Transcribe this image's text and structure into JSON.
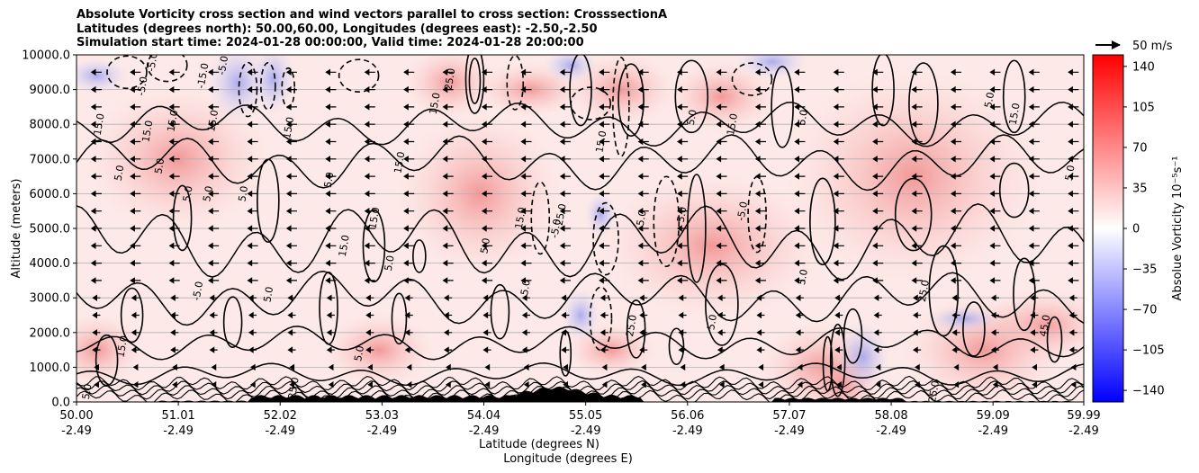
{
  "chart_data": {
    "type": "contour",
    "title_lines": [
      "Absolute Vorticity cross section and wind vectors parallel to cross section: CrosssectionA",
      "Latitudes (degrees north): 50.00,60.00, Longitudes (degrees east): -2.50,-2.50",
      "Simulation start time: 2024-01-28 00:00:00, Valid time: 2024-01-28 20:00:00"
    ],
    "ylabel": "Altitude (meters)",
    "xlabel_lines": [
      "Latitude (degrees N)",
      "Longitude (degrees E)"
    ],
    "ylim": [
      0,
      10000
    ],
    "y_ticks": [
      "0.0",
      "1000.0",
      "2000.0",
      "3000.0",
      "4000.0",
      "5000.0",
      "6000.0",
      "7000.0",
      "8000.0",
      "9000.0",
      "10000.0"
    ],
    "x_ticks": [
      {
        "lat": "50.00",
        "lon": "-2.49"
      },
      {
        "lat": "51.01",
        "lon": "-2.49"
      },
      {
        "lat": "52.02",
        "lon": "-2.49"
      },
      {
        "lat": "53.03",
        "lon": "-2.49"
      },
      {
        "lat": "54.04",
        "lon": "-2.49"
      },
      {
        "lat": "55.05",
        "lon": "-2.49"
      },
      {
        "lat": "56.06",
        "lon": "-2.49"
      },
      {
        "lat": "57.07",
        "lon": "-2.49"
      },
      {
        "lat": "58.08",
        "lon": "-2.49"
      },
      {
        "lat": "59.09",
        "lon": "-2.49"
      },
      {
        "lat": "59.99",
        "lon": "-2.49"
      }
    ],
    "grid": "horizontal",
    "colorbar": {
      "label": "Absolue Vorticity 10⁻⁵s⁻¹",
      "range": [
        -150,
        150
      ],
      "colormap": "bwr",
      "ticks": [
        "140",
        "105",
        "70",
        "35",
        "0",
        "−35",
        "−70",
        "−105",
        "−140"
      ],
      "tick_values": [
        140,
        105,
        70,
        35,
        0,
        -35,
        -70,
        -105,
        -140
      ]
    },
    "quiver_key": {
      "label": "50 m/s",
      "value": 50
    },
    "contour_labels": [
      {
        "t": "15.0",
        "lat": 50.22,
        "alt": 8000
      },
      {
        "t": "5.0",
        "lat": 50.42,
        "alt": 6600
      },
      {
        "t": "15.0",
        "lat": 50.7,
        "alt": 7800
      },
      {
        "t": "5.0",
        "lat": 50.82,
        "alt": 6800
      },
      {
        "t": "-5.0",
        "lat": 50.65,
        "alt": 9100
      },
      {
        "t": "-5.0",
        "lat": 50.75,
        "alt": 9800
      },
      {
        "t": "15.0",
        "lat": 50.95,
        "alt": 8100
      },
      {
        "t": "-15.0",
        "lat": 51.25,
        "alt": 9400
      },
      {
        "t": "-5.0",
        "lat": 51.45,
        "alt": 9700
      },
      {
        "t": "15.0",
        "lat": 51.35,
        "alt": 8100
      },
      {
        "t": "5.0",
        "lat": 51.1,
        "alt": 6000
      },
      {
        "t": "5.0",
        "lat": 51.3,
        "alt": 6000
      },
      {
        "t": "5.0",
        "lat": 51.65,
        "alt": 6000
      },
      {
        "t": "15.0",
        "lat": 52.1,
        "alt": 7900
      },
      {
        "t": "5.0",
        "lat": 52.5,
        "alt": 6400
      },
      {
        "t": "15.0",
        "lat": 52.95,
        "alt": 5300
      },
      {
        "t": "15.0",
        "lat": 52.65,
        "alt": 4500
      },
      {
        "t": "5.0",
        "lat": 53.1,
        "alt": 4000
      },
      {
        "t": "15.0",
        "lat": 53.2,
        "alt": 6900
      },
      {
        "t": "25.0",
        "lat": 53.7,
        "alt": 9300
      },
      {
        "t": "15.0",
        "lat": 53.55,
        "alt": 8600
      },
      {
        "t": "5.0",
        "lat": 54.05,
        "alt": 4500
      },
      {
        "t": "15.0",
        "lat": 54.4,
        "alt": 5300
      },
      {
        "t": "25.0",
        "lat": 54.8,
        "alt": 5400
      },
      {
        "t": "-5.0",
        "lat": 54.75,
        "alt": 5000
      },
      {
        "t": "5.0",
        "lat": 54.45,
        "alt": 3300
      },
      {
        "t": "15.0",
        "lat": 55.2,
        "alt": 7500
      },
      {
        "t": "5.0",
        "lat": 55.6,
        "alt": 5300
      },
      {
        "t": "5.0",
        "lat": 56.0,
        "alt": 5400
      },
      {
        "t": "15.0",
        "lat": 56.5,
        "alt": 8000
      },
      {
        "t": "5.0",
        "lat": 56.1,
        "alt": 8200
      },
      {
        "t": "-5.0",
        "lat": 56.6,
        "alt": 5500
      },
      {
        "t": "5.0",
        "lat": 57.2,
        "alt": 8200
      },
      {
        "t": "25.0",
        "lat": 58.4,
        "alt": 3200
      },
      {
        "t": "45.0",
        "lat": 59.6,
        "alt": 2200
      },
      {
        "t": "25.0",
        "lat": 55.5,
        "alt": 2200
      },
      {
        "t": "5.0",
        "lat": 56.3,
        "alt": 2300
      },
      {
        "t": "5.0",
        "lat": 57.2,
        "alt": 3600
      },
      {
        "t": "-5.0",
        "lat": 51.2,
        "alt": 3200
      },
      {
        "t": "5.0",
        "lat": 51.9,
        "alt": 3100
      },
      {
        "t": "5.0",
        "lat": 52.8,
        "alt": 1400
      },
      {
        "t": "15.0",
        "lat": 50.45,
        "alt": 1600
      },
      {
        "t": "5.0",
        "lat": 50.1,
        "alt": 300
      },
      {
        "t": "25.0",
        "lat": 52.15,
        "alt": 400
      },
      {
        "t": "5.0",
        "lat": 59.05,
        "alt": 8700
      },
      {
        "t": "15.0",
        "lat": 59.3,
        "alt": 8300
      },
      {
        "t": "5.0",
        "lat": 59.85,
        "alt": 6600
      },
      {
        "t": "25.0",
        "lat": 58.5,
        "alt": 300
      }
    ]
  }
}
